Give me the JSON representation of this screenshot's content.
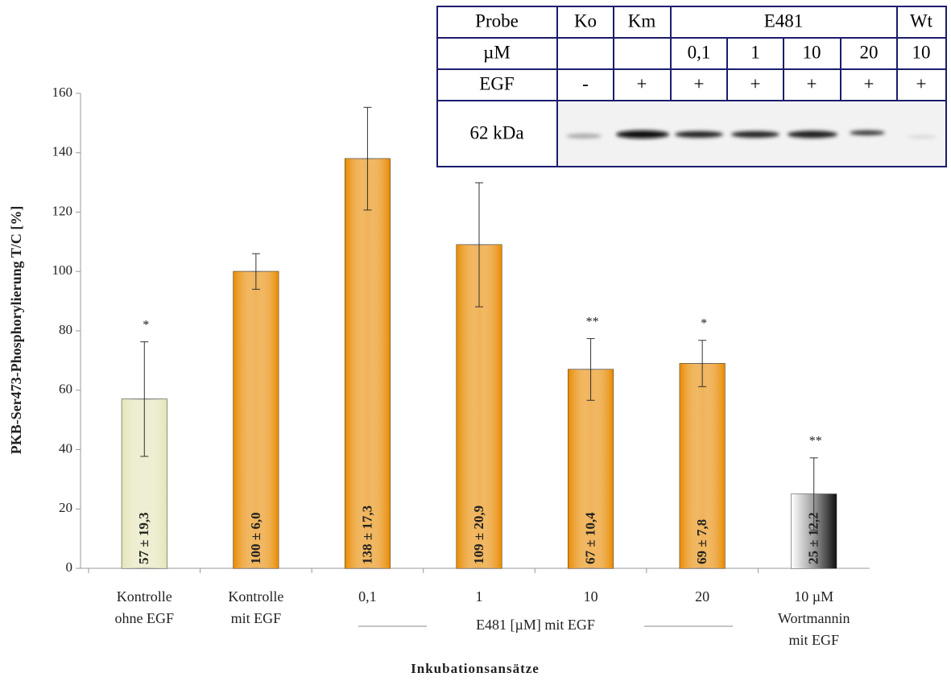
{
  "chart_data": {
    "type": "bar",
    "y_label": "PKB-Ser473-Phosphorylierung T/C [%]",
    "x_label": "Inkubationsansätze",
    "categories": [
      [
        "Kontrolle",
        "ohne EGF"
      ],
      [
        "Kontrolle",
        "mit EGF"
      ],
      [
        "0,1"
      ],
      [
        "1"
      ],
      [
        "10"
      ],
      [
        "20"
      ],
      [
        "10 µM",
        "Wortmannin",
        "mit EGF"
      ]
    ],
    "group_label": "E481 [µM] mit EGF",
    "values": [
      57,
      100,
      138,
      109,
      67,
      69,
      25
    ],
    "errors": [
      19.3,
      6.0,
      17.3,
      20.9,
      10.4,
      7.8,
      12.2
    ],
    "value_labels": [
      "57 ± 19,3",
      "100 ± 6,0",
      "138 ± 17,3",
      "109 ± 20,9",
      "67 ± 10,4",
      "69 ± 7,8",
      "25 ± 12,2"
    ],
    "significance": [
      "*",
      null,
      null,
      null,
      "**",
      "*",
      "**"
    ],
    "colors": [
      "#e4e4b8",
      "#e88a00",
      "#e88a00",
      "#e88a00",
      "#e88a00",
      "#e88a00",
      "#9a9a9a"
    ],
    "ylim": [
      0,
      160
    ],
    "yticks": [
      0,
      20,
      40,
      60,
      80,
      100,
      120,
      140,
      160
    ],
    "grid": false
  },
  "inset_table": {
    "header": [
      "Probe",
      "Ko",
      "Km",
      "E481",
      "Wt"
    ],
    "rows": [
      [
        "µM",
        null,
        null,
        "0,1",
        "1",
        "10",
        "20",
        "10"
      ],
      [
        "EGF",
        "-",
        "+",
        "+",
        "+",
        "+",
        "+",
        "+"
      ]
    ],
    "blot_label": "62 kDa"
  }
}
